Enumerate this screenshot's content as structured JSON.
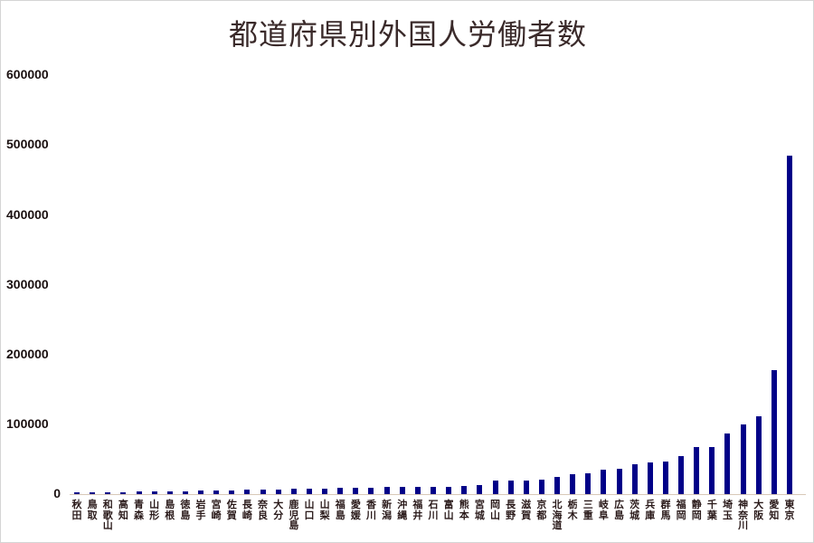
{
  "chart_data": {
    "type": "bar",
    "title": "都道府県別外国人労働者数",
    "xlabel": "",
    "ylabel": "",
    "ylim": [
      0,
      600000
    ],
    "yticks": [
      0,
      100000,
      200000,
      300000,
      400000,
      500000,
      600000
    ],
    "grid": false,
    "legend": null,
    "bar_color": "#000088",
    "categories": [
      "秋田",
      "鳥取",
      "和歌山",
      "高知",
      "青森",
      "山形",
      "島根",
      "徳島",
      "岩手",
      "宮崎",
      "佐賀",
      "長崎",
      "奈良",
      "大分",
      "鹿児島",
      "山口",
      "山梨",
      "福島",
      "愛媛",
      "香川",
      "新潟",
      "沖縄",
      "福井",
      "石川",
      "富山",
      "熊本",
      "宮城",
      "岡山",
      "長野",
      "滋賀",
      "京都",
      "北海道",
      "栃木",
      "三重",
      "岐阜",
      "広島",
      "茨城",
      "兵庫",
      "群馬",
      "福岡",
      "静岡",
      "千葉",
      "埼玉",
      "神奈川",
      "大阪",
      "愛知",
      "東京"
    ],
    "values": [
      2000,
      2500,
      3000,
      3000,
      4000,
      4000,
      4000,
      4000,
      5000,
      5000,
      5000,
      6000,
      6000,
      7000,
      7500,
      8000,
      8000,
      8500,
      8500,
      9000,
      10000,
      10000,
      10000,
      10500,
      11000,
      12000,
      13000,
      19000,
      20000,
      20000,
      21000,
      25000,
      28000,
      30000,
      35000,
      36000,
      43000,
      46000,
      47000,
      54000,
      67000,
      68000,
      87000,
      100000,
      111000,
      177000,
      485000
    ]
  },
  "y_axis": {
    "labels": [
      "600000",
      "500000",
      "400000",
      "300000",
      "200000",
      "100000",
      "0"
    ]
  }
}
